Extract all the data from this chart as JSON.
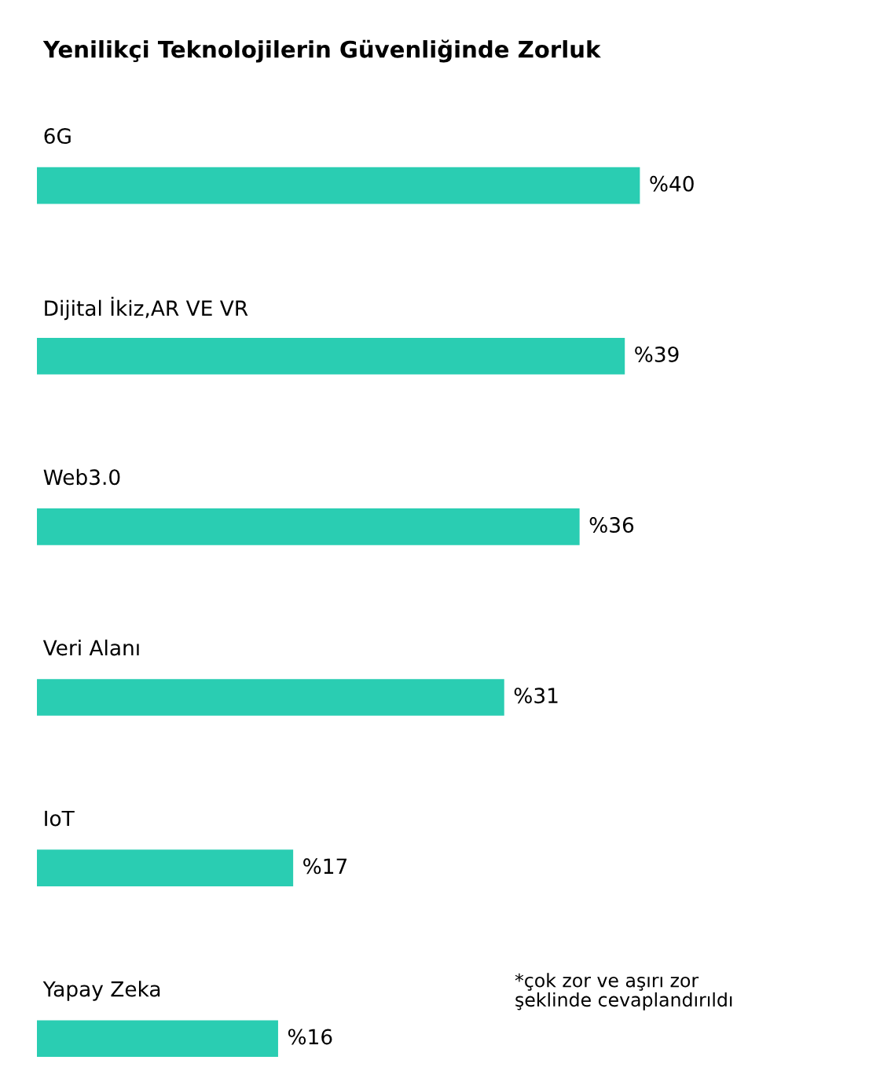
{
  "chart_data": {
    "type": "bar",
    "orientation": "horizontal",
    "title": "Yenilikçi Teknolojilerin Güvenliğinde Zorluk",
    "categories": [
      "6G",
      "Dijital İkiz,AR VE VR",
      "Web3.0",
      "Veri Alanı",
      "IoT",
      "Yapay Zeka"
    ],
    "values": [
      40,
      39,
      36,
      31,
      17,
      16
    ],
    "value_labels": [
      "%40",
      "%39",
      "%36",
      "%31",
      "%17",
      "%16"
    ],
    "color": "#2acdb2",
    "annotations": [
      "*çok zor ve aşırı zor\nşeklinde cevaplandırıldı"
    ]
  }
}
